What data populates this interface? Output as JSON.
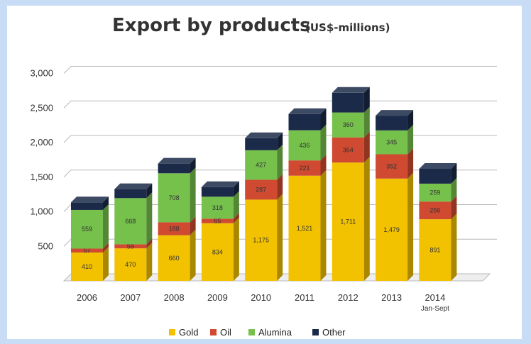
{
  "chart_data": {
    "type": "bar",
    "stacked": true,
    "title": "Export by products",
    "subtitle": "(US$-millions)",
    "categories": [
      "2006",
      "2007",
      "2008",
      "2009",
      "2010",
      "2011",
      "2012",
      "2013",
      "2014"
    ],
    "category_sublabels": [
      "",
      "",
      "",
      "",
      "",
      "",
      "",
      "",
      "Jan-Sept"
    ],
    "ylim": [
      0,
      3000
    ],
    "yticks": [
      "500",
      "1,000",
      "1,500",
      "2,000",
      "2,500",
      "3,000"
    ],
    "ytick_values": [
      500,
      1000,
      1500,
      2000,
      2500,
      3000
    ],
    "grid": true,
    "legend_position": "bottom",
    "series": [
      {
        "name": "Gold",
        "color": "#f2c200",
        "values": [
          410,
          470,
          660,
          834,
          1175,
          1521,
          1711,
          1479,
          891
        ],
        "labels": [
          "410",
          "470",
          "660",
          "834",
          "1,175",
          "1,521",
          "1,711",
          "1,479",
          "891"
        ]
      },
      {
        "name": "Oil",
        "color": "#cf4a31",
        "values": [
          57,
          59,
          188,
          65,
          287,
          221,
          364,
          352,
          256
        ],
        "labels": [
          "57",
          "59",
          "188",
          "65",
          "287",
          "221",
          "364",
          "352",
          "256"
        ]
      },
      {
        "name": "Alumina",
        "color": "#76c04c",
        "values": [
          559,
          668,
          708,
          318,
          427,
          436,
          360,
          345,
          259
        ],
        "labels": [
          "559",
          "668",
          "708",
          "318",
          "427",
          "436",
          "360",
          "345",
          "259"
        ]
      },
      {
        "name": "Other",
        "color": "#1b2a48",
        "values": [
          110,
          130,
          140,
          140,
          175,
          235,
          285,
          213,
          215
        ],
        "labels": [
          "",
          "",
          "",
          "",
          "",
          "",
          "",
          "",
          ""
        ]
      }
    ]
  }
}
